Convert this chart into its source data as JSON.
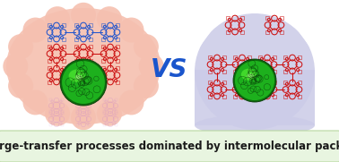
{
  "title": "Charge-transfer processes dominated by intermolecular packing",
  "title_color": "#1a1a1a",
  "title_fontsize": 8.5,
  "title_bg": "#e8f5e0",
  "title_border": "#b8d8a0",
  "vs_text": "VS",
  "vs_color": "#1a55cc",
  "vs_fontsize": 20,
  "left_bg_color": "#f5c0b0",
  "right_bg_color": "#cccce8",
  "porphyrin_red": "#cc1111",
  "porphyrin_blue": "#2255cc",
  "refl_color": "#cc88cc",
  "fig_width": 3.78,
  "fig_height": 1.81,
  "dpi": 100
}
